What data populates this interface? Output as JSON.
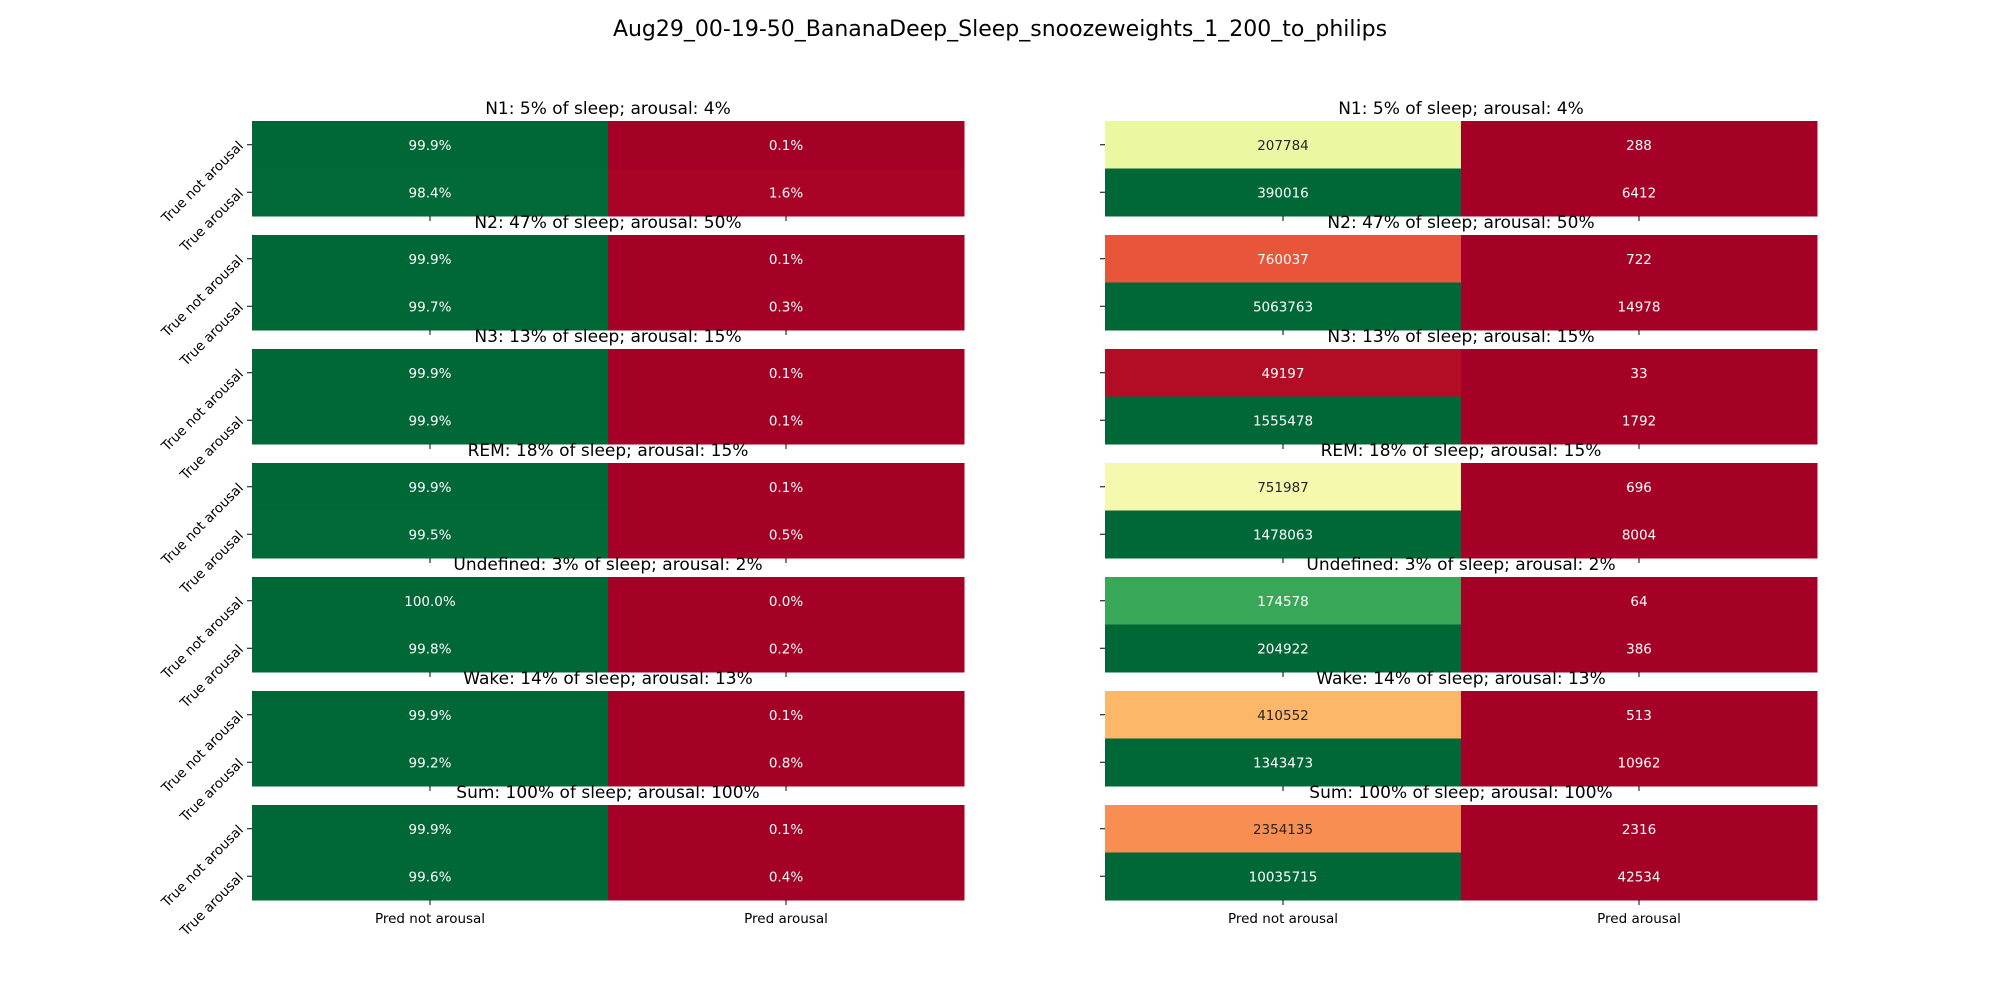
{
  "figure": {
    "title": "Aug29_00-19-50_BananaDeep_Sleep_snoozeweights_1_200_to_philips"
  },
  "chart_data": {
    "type": "heatmap",
    "row_labels": [
      "True not arousal",
      "True arousal"
    ],
    "col_labels": [
      "Pred not arousal",
      "Pred arousal"
    ],
    "panels": [
      {
        "title": "N1: 5% of sleep; arousal: 4%",
        "percent": [
          [
            "99.9%",
            "0.1%"
          ],
          [
            "98.4%",
            "1.6%"
          ]
        ],
        "counts": [
          [
            207784,
            288
          ],
          [
            390016,
            6412
          ]
        ],
        "percent_colors": [
          [
            "#006837",
            "#a50026"
          ],
          [
            "#016a38",
            "#a90426"
          ]
        ],
        "count_colors": [
          [
            "#ecf7a2",
            "#a50026"
          ],
          [
            "#006837",
            "#a50026"
          ]
        ]
      },
      {
        "title": "N2: 47% of sleep; arousal: 50%",
        "percent": [
          [
            "99.9%",
            "0.1%"
          ],
          [
            "99.7%",
            "0.3%"
          ]
        ],
        "counts": [
          [
            760037,
            722
          ],
          [
            5063763,
            14978
          ]
        ],
        "percent_colors": [
          [
            "#006837",
            "#a50026"
          ],
          [
            "#006837",
            "#a50026"
          ]
        ],
        "count_colors": [
          [
            "#e8553b",
            "#a50026"
          ],
          [
            "#006837",
            "#a50026"
          ]
        ]
      },
      {
        "title": "N3: 13% of sleep; arousal: 15%",
        "percent": [
          [
            "99.9%",
            "0.1%"
          ],
          [
            "99.9%",
            "0.1%"
          ]
        ],
        "counts": [
          [
            49197,
            33
          ],
          [
            1555478,
            1792
          ]
        ],
        "percent_colors": [
          [
            "#006837",
            "#a50026"
          ],
          [
            "#006837",
            "#a50026"
          ]
        ],
        "count_colors": [
          [
            "#b30d26",
            "#a50026"
          ],
          [
            "#006837",
            "#a50026"
          ]
        ]
      },
      {
        "title": "REM: 18% of sleep; arousal: 15%",
        "percent": [
          [
            "99.9%",
            "0.1%"
          ],
          [
            "99.5%",
            "0.5%"
          ]
        ],
        "counts": [
          [
            751987,
            696
          ],
          [
            1478063,
            8004
          ]
        ],
        "percent_colors": [
          [
            "#006837",
            "#a50026"
          ],
          [
            "#016a38",
            "#a50026"
          ]
        ],
        "count_colors": [
          [
            "#f4f9ad",
            "#a50026"
          ],
          [
            "#006837",
            "#a50026"
          ]
        ]
      },
      {
        "title": "Undefined: 3% of sleep; arousal: 2%",
        "percent": [
          [
            "100.0%",
            "0.0%"
          ],
          [
            "99.8%",
            "0.2%"
          ]
        ],
        "counts": [
          [
            174578,
            64
          ],
          [
            204922,
            386
          ]
        ],
        "percent_colors": [
          [
            "#006837",
            "#a50026"
          ],
          [
            "#006837",
            "#a50026"
          ]
        ],
        "count_colors": [
          [
            "#39a758",
            "#a50026"
          ],
          [
            "#006837",
            "#a50026"
          ]
        ]
      },
      {
        "title": "Wake: 14% of sleep; arousal: 13%",
        "percent": [
          [
            "99.9%",
            "0.1%"
          ],
          [
            "99.2%",
            "0.8%"
          ]
        ],
        "counts": [
          [
            410552,
            513
          ],
          [
            1343473,
            10962
          ]
        ],
        "percent_colors": [
          [
            "#006837",
            "#a50026"
          ],
          [
            "#006837",
            "#a50026"
          ]
        ],
        "count_colors": [
          [
            "#fdb768",
            "#a50026"
          ],
          [
            "#006837",
            "#a50026"
          ]
        ]
      },
      {
        "title": "Sum: 100% of sleep; arousal: 100%",
        "percent": [
          [
            "99.9%",
            "0.1%"
          ],
          [
            "99.6%",
            "0.4%"
          ]
        ],
        "counts": [
          [
            2354135,
            2316
          ],
          [
            10035715,
            42534
          ]
        ],
        "percent_colors": [
          [
            "#006837",
            "#a50026"
          ],
          [
            "#006837",
            "#a50026"
          ]
        ],
        "count_colors": [
          [
            "#f88e52",
            "#a50026"
          ],
          [
            "#006837",
            "#a50026"
          ]
        ]
      }
    ]
  }
}
